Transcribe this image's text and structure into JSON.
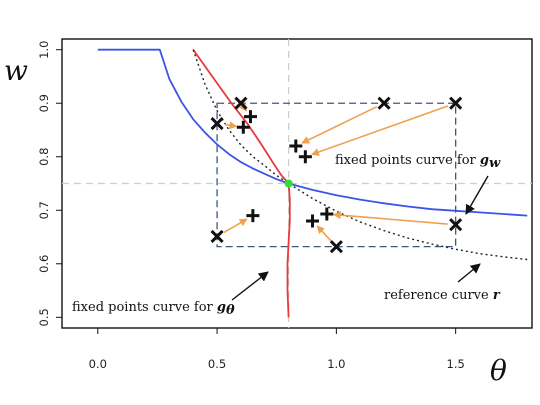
{
  "chart_data": {
    "type": "line",
    "xlabel": "θ",
    "ylabel": "w",
    "xlim": [
      -0.15,
      1.82
    ],
    "ylim": [
      0.48,
      1.02
    ],
    "xticks": [
      "0.0",
      "0.5",
      "1.0",
      "1.5"
    ],
    "yticks": [
      "0.5",
      "0.6",
      "0.7",
      "0.8",
      "0.9",
      "1.0"
    ],
    "reference_lines": {
      "x": 0.8,
      "y": 0.75
    },
    "series": [
      {
        "key": "gw",
        "color": "#3c55e6",
        "x": [
          0.0,
          0.26,
          0.3,
          0.35,
          0.4,
          0.45,
          0.5,
          0.55,
          0.6,
          0.65,
          0.7,
          0.75,
          0.8,
          0.9,
          1.0,
          1.1,
          1.2,
          1.3,
          1.4,
          1.5,
          1.6,
          1.7,
          1.8
        ],
        "y": [
          1.0,
          1.0,
          0.945,
          0.903,
          0.87,
          0.845,
          0.823,
          0.805,
          0.79,
          0.778,
          0.768,
          0.758,
          0.75,
          0.738,
          0.728,
          0.72,
          0.713,
          0.707,
          0.702,
          0.699,
          0.696,
          0.693,
          0.69
        ]
      },
      {
        "key": "gtheta",
        "color": "#e83a3a",
        "x": [
          0.4,
          0.48,
          0.56,
          0.63,
          0.69,
          0.74,
          0.77,
          0.79,
          0.8,
          0.805,
          0.805,
          0.8,
          0.795,
          0.795,
          0.8
        ],
        "y": [
          1.0,
          0.95,
          0.9,
          0.86,
          0.82,
          0.785,
          0.765,
          0.755,
          0.75,
          0.72,
          0.68,
          0.64,
          0.6,
          0.55,
          0.5
        ]
      },
      {
        "key": "r",
        "color": "#222222",
        "dashed": true,
        "x": [
          0.4,
          0.45,
          0.5,
          0.55,
          0.6,
          0.65,
          0.7,
          0.75,
          0.8,
          0.9,
          1.0,
          1.1,
          1.2,
          1.3,
          1.4,
          1.5,
          1.6,
          1.7,
          1.8
        ],
        "y": [
          1.0,
          0.935,
          0.886,
          0.85,
          0.822,
          0.8,
          0.783,
          0.765,
          0.75,
          0.722,
          0.698,
          0.678,
          0.662,
          0.648,
          0.637,
          0.627,
          0.619,
          0.613,
          0.608
        ]
      }
    ],
    "fixed_point": {
      "x": 0.8,
      "y": 0.75,
      "color": "#33dd33"
    },
    "box": {
      "x": [
        0.5,
        1.5
      ],
      "y": [
        0.632,
        0.9
      ],
      "color": "#3a5a80"
    },
    "arrows": [
      {
        "from": [
          0.6,
          0.9
        ],
        "to": [
          0.64,
          0.875
        ]
      },
      {
        "from": [
          0.5,
          0.862
        ],
        "to": [
          0.61,
          0.855
        ]
      },
      {
        "from": [
          1.2,
          0.9
        ],
        "to": [
          0.83,
          0.82
        ]
      },
      {
        "from": [
          1.5,
          0.9
        ],
        "to": [
          0.87,
          0.8
        ]
      },
      {
        "from": [
          0.5,
          0.651
        ],
        "to": [
          0.65,
          0.69
        ]
      },
      {
        "from": [
          1.0,
          0.632
        ],
        "to": [
          0.9,
          0.68
        ]
      },
      {
        "from": [
          1.5,
          0.673
        ],
        "to": [
          0.96,
          0.693
        ]
      }
    ],
    "crosses": [
      [
        0.6,
        0.9
      ],
      [
        0.5,
        0.862
      ],
      [
        1.2,
        0.9
      ],
      [
        1.5,
        0.9
      ],
      [
        0.5,
        0.651
      ],
      [
        1.0,
        0.632
      ],
      [
        1.5,
        0.673
      ]
    ],
    "pluses": [
      [
        0.64,
        0.875
      ],
      [
        0.61,
        0.855
      ],
      [
        0.83,
        0.82
      ],
      [
        0.87,
        0.8
      ],
      [
        0.65,
        0.69
      ],
      [
        0.9,
        0.68
      ],
      [
        0.96,
        0.693
      ]
    ],
    "annotations": {
      "gw_text": "fixed points curve for ",
      "gw_symbol": "g",
      "gw_sub": "w",
      "gtheta_text": "fixed points curve for ",
      "gtheta_symbol": "g",
      "gtheta_sub": "θ",
      "r_text": "reference curve ",
      "r_symbol": "r"
    },
    "arrow_color": "#f0a050",
    "grid": false
  }
}
